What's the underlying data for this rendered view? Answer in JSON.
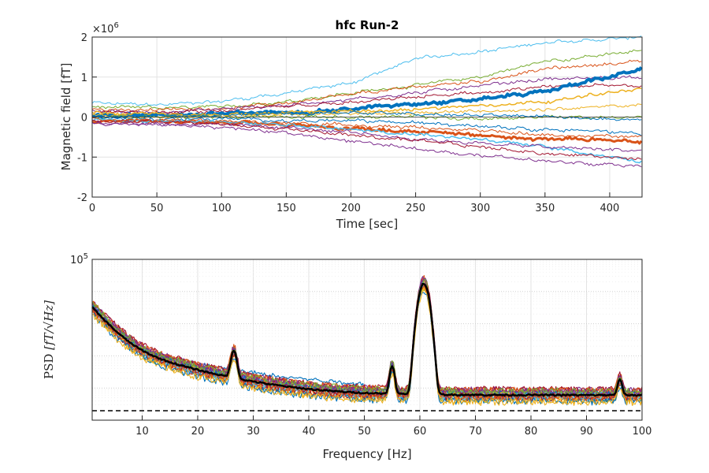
{
  "chart_data": [
    {
      "type": "line",
      "title": "hfc Run-2",
      "xlabel": "Time [sec]",
      "ylabel": "Magnetic field [fT]",
      "y_exponent_label": "×10",
      "y_exponent_power": "6",
      "xlim": [
        0,
        425
      ],
      "ylim": [
        -2,
        2
      ],
      "xticks": [
        0,
        50,
        100,
        150,
        200,
        250,
        300,
        350,
        400
      ],
      "yticks": [
        -2,
        -1,
        0,
        1,
        2
      ],
      "grid": true,
      "series_colors": [
        "#0072BD",
        "#D95319",
        "#EDB120",
        "#7E2F8E",
        "#77AC30",
        "#4DBEEE",
        "#A2142F"
      ],
      "time": [
        0,
        50,
        100,
        150,
        200,
        250,
        300,
        350,
        425
      ],
      "traces": [
        {
          "color": "#4DBEEE",
          "width": 1,
          "values": [
            0.35,
            0.3,
            0.4,
            0.6,
            0.85,
            1.45,
            1.65,
            1.85,
            2.0
          ]
        },
        {
          "color": "#77AC30",
          "width": 1,
          "values": [
            0.25,
            0.22,
            0.25,
            0.4,
            0.6,
            0.8,
            1.0,
            1.4,
            1.65
          ]
        },
        {
          "color": "#D95319",
          "width": 1,
          "values": [
            0.2,
            0.18,
            0.22,
            0.35,
            0.55,
            0.75,
            0.9,
            1.2,
            1.4
          ]
        },
        {
          "color": "#7E2F8E",
          "width": 1,
          "values": [
            0.15,
            0.12,
            0.2,
            0.3,
            0.45,
            0.6,
            0.8,
            0.95,
            1.0
          ]
        },
        {
          "color": "#A2142F",
          "width": 1,
          "values": [
            0.12,
            0.1,
            0.15,
            0.25,
            0.35,
            0.5,
            0.6,
            0.75,
            0.8
          ]
        },
        {
          "color": "#0072BD",
          "width": 4,
          "values": [
            0.05,
            0.05,
            0.08,
            0.12,
            0.2,
            0.35,
            0.45,
            0.65,
            1.2
          ]
        },
        {
          "color": "#EDB120",
          "width": 1.5,
          "values": [
            0.1,
            0.08,
            0.05,
            0.1,
            0.15,
            0.2,
            0.3,
            0.4,
            0.7
          ]
        },
        {
          "color": "#EDB120",
          "width": 1,
          "values": [
            0.05,
            0.0,
            0.02,
            0.05,
            0.08,
            0.12,
            0.15,
            0.2,
            0.3
          ]
        },
        {
          "color": "#77AC30",
          "width": 1,
          "values": [
            -0.02,
            0.0,
            0.0,
            0.02,
            0.0,
            0.0,
            -0.05,
            0.0,
            0.0
          ]
        },
        {
          "color": "#0072BD",
          "width": 1,
          "values": [
            0.0,
            -0.05,
            -0.05,
            -0.08,
            -0.1,
            -0.15,
            -0.2,
            -0.3,
            -0.4
          ]
        },
        {
          "color": "#D95319",
          "width": 3,
          "values": [
            -0.1,
            -0.12,
            -0.15,
            -0.2,
            -0.28,
            -0.35,
            -0.45,
            -0.55,
            -0.6
          ]
        },
        {
          "color": "#4DBEEE",
          "width": 1.5,
          "values": [
            -0.05,
            -0.1,
            -0.12,
            -0.2,
            -0.3,
            -0.4,
            -0.55,
            -0.75,
            -1.1
          ]
        },
        {
          "color": "#7E2F8E",
          "width": 1,
          "values": [
            -0.15,
            -0.15,
            -0.2,
            -0.25,
            -0.4,
            -0.55,
            -0.65,
            -0.75,
            -0.85
          ]
        },
        {
          "color": "#A2142F",
          "width": 1,
          "values": [
            -0.1,
            -0.12,
            -0.18,
            -0.3,
            -0.45,
            -0.6,
            -0.75,
            -0.9,
            -1.05
          ]
        },
        {
          "color": "#7E2F8E",
          "width": 1,
          "values": [
            -0.15,
            -0.2,
            -0.25,
            -0.4,
            -0.6,
            -0.8,
            -0.95,
            -1.1,
            -1.2
          ]
        },
        {
          "color": "#D95319",
          "width": 1,
          "values": [
            -0.05,
            -0.08,
            -0.1,
            -0.15,
            -0.2,
            -0.25,
            -0.35,
            -0.45,
            -0.5
          ]
        },
        {
          "color": "#0072BD",
          "width": 1,
          "values": [
            0.02,
            0.05,
            0.05,
            0.08,
            0.1,
            0.08,
            0.05,
            0.0,
            -0.05
          ]
        }
      ]
    },
    {
      "type": "line",
      "title": "",
      "xlabel": "Frequency [Hz]",
      "ylabel": "PSD [fT/√Hz]",
      "ylabel_text": "PSD",
      "ylabel_unit": "[fT/√Hz]",
      "xlim": [
        1,
        100
      ],
      "y_scale": "log",
      "ylim": [
        1,
        100000
      ],
      "xticks": [
        10,
        20,
        30,
        40,
        50,
        60,
        70,
        80,
        90,
        100
      ],
      "ytick_labels": [
        {
          "value": 100000,
          "base": "10",
          "exp": "5"
        }
      ],
      "grid": true,
      "reference_line": {
        "style": "dashed",
        "color": "#000000"
      },
      "mean_trace": {
        "color": "#000000",
        "width": 2.5
      },
      "series_colors": [
        "#0072BD",
        "#D95319",
        "#EDB120",
        "#7E2F8E",
        "#77AC30",
        "#4DBEEE",
        "#A2142F"
      ]
    }
  ]
}
